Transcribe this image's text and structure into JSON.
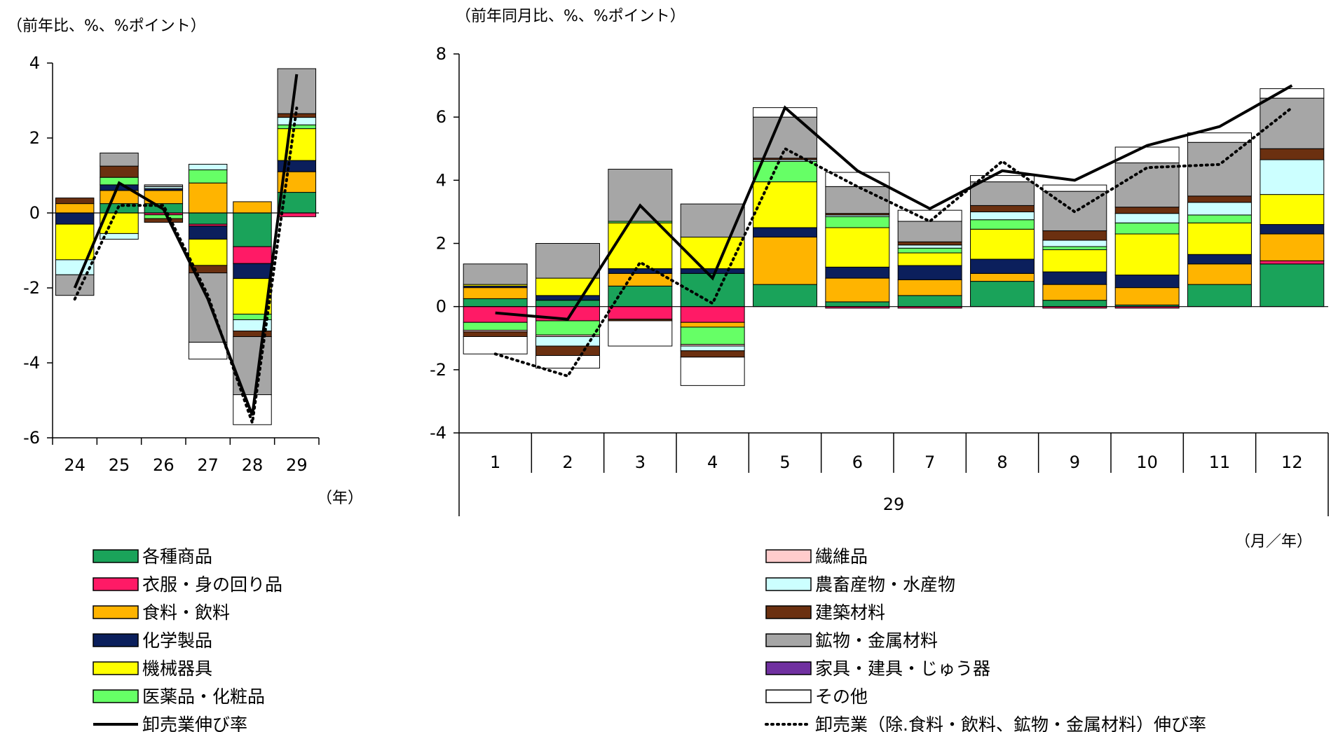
{
  "chart_data": [
    {
      "type": "bar",
      "stacked": true,
      "unit_label": "（前年比、%、%ポイント）",
      "x_unit_label": "（年）",
      "categories": [
        "24",
        "25",
        "26",
        "27",
        "28",
        "29"
      ],
      "ylim": [
        -6,
        4
      ],
      "yticks": [
        "4",
        "2",
        "0",
        "-2",
        "-4",
        "-6"
      ],
      "series": [
        {
          "name": "各種商品",
          "color": "#1aa35a",
          "values": [
            0.0,
            0.25,
            0.25,
            -0.3,
            -0.9,
            0.55
          ]
        },
        {
          "name": "衣服・身の回り品",
          "color": "#ff1a66",
          "values": [
            0.0,
            0.0,
            -0.05,
            -0.05,
            -0.45,
            -0.1
          ]
        },
        {
          "name": "食料・飲料",
          "color": "#ffb400",
          "values": [
            0.25,
            0.35,
            0.35,
            0.8,
            0.3,
            0.55
          ]
        },
        {
          "name": "化学製品",
          "color": "#0b1f5c",
          "values": [
            -0.3,
            0.15,
            0.05,
            -0.35,
            -0.4,
            0.3
          ]
        },
        {
          "name": "機械器具",
          "color": "#ffff00",
          "values": [
            -0.95,
            -0.55,
            0.0,
            -0.7,
            -0.95,
            0.85
          ]
        },
        {
          "name": "医薬品・化粧品",
          "color": "#66ff66",
          "values": [
            0.0,
            0.2,
            -0.1,
            0.35,
            -0.15,
            0.1
          ]
        },
        {
          "name": "繊維品",
          "color": "#ffcccc",
          "values": [
            0.0,
            0.0,
            0.0,
            0.0,
            0.0,
            0.0
          ]
        },
        {
          "name": "農畜産物・水産物",
          "color": "#ccffff",
          "values": [
            -0.4,
            -0.15,
            0.05,
            0.15,
            -0.3,
            0.2
          ]
        },
        {
          "name": "建築材料",
          "color": "#6b3010",
          "values": [
            0.15,
            0.3,
            -0.1,
            -0.2,
            -0.15,
            0.1
          ]
        },
        {
          "name": "鉱物・金属材料",
          "color": "#a6a6a6",
          "values": [
            -0.55,
            0.35,
            0.05,
            -1.85,
            -1.55,
            1.2
          ]
        },
        {
          "name": "家具・建具・じゅう器",
          "color": "#7030a0",
          "values": [
            0.0,
            0.0,
            0.0,
            0.0,
            0.0,
            0.0
          ]
        },
        {
          "name": "その他",
          "color": "#ffffff",
          "values": [
            0.0,
            0.0,
            0.0,
            -0.45,
            -0.8,
            0.0
          ]
        }
      ],
      "lines": [
        {
          "name": "卸売業伸び率",
          "style": "solid",
          "values": [
            -2.0,
            0.8,
            0.1,
            -2.3,
            -5.4,
            3.7
          ]
        },
        {
          "name": "卸売業（除.食料・飲料、鉱物・金属材料）伸び率",
          "style": "dotted",
          "values": [
            -2.3,
            0.2,
            0.2,
            -2.2,
            -5.6,
            2.8
          ]
        }
      ]
    },
    {
      "type": "bar",
      "stacked": true,
      "unit_label": "（前年同月比、%、%ポイント）",
      "x_unit_label": "（月／年）",
      "group_label": "29",
      "categories": [
        "1",
        "2",
        "3",
        "4",
        "5",
        "6",
        "7",
        "8",
        "9",
        "10",
        "11",
        "12"
      ],
      "ylim": [
        -4,
        8
      ],
      "yticks": [
        "8",
        "6",
        "4",
        "2",
        "0",
        "-2",
        "-4"
      ],
      "series": [
        {
          "name": "各種商品",
          "color": "#1aa35a",
          "values": [
            0.25,
            0.2,
            0.65,
            1.05,
            0.7,
            0.15,
            0.35,
            0.8,
            0.2,
            0.05,
            0.7,
            1.35
          ]
        },
        {
          "name": "衣服・身の回り品",
          "color": "#ff1a66",
          "values": [
            -0.5,
            -0.45,
            -0.4,
            -0.5,
            0.0,
            -0.05,
            -0.05,
            0.0,
            -0.05,
            -0.05,
            0.0,
            0.1
          ]
        },
        {
          "name": "食料・飲料",
          "color": "#ffb400",
          "values": [
            0.35,
            0.0,
            0.4,
            -0.15,
            1.5,
            0.75,
            0.5,
            0.25,
            0.5,
            0.55,
            0.65,
            0.85
          ]
        },
        {
          "name": "化学製品",
          "color": "#0b1f5c",
          "values": [
            0.05,
            0.15,
            0.15,
            0.15,
            0.3,
            0.35,
            0.45,
            0.45,
            0.4,
            0.4,
            0.3,
            0.3
          ]
        },
        {
          "name": "機械器具",
          "color": "#ffff00",
          "values": [
            0.05,
            0.55,
            1.45,
            1.0,
            1.45,
            1.25,
            0.4,
            0.95,
            0.7,
            1.3,
            1.0,
            0.95
          ]
        },
        {
          "name": "医薬品・化粧品",
          "color": "#66ff66",
          "values": [
            -0.25,
            -0.45,
            0.05,
            -0.55,
            0.65,
            0.35,
            0.15,
            0.3,
            0.1,
            0.35,
            0.25,
            0.0
          ]
        },
        {
          "name": "繊維品",
          "color": "#ffcccc",
          "values": [
            -0.05,
            -0.05,
            0.0,
            -0.05,
            0.0,
            0.0,
            0.0,
            0.0,
            0.0,
            0.0,
            0.0,
            0.0
          ]
        },
        {
          "name": "農畜産物・水産物",
          "color": "#ccffff",
          "values": [
            0.0,
            -0.3,
            0.0,
            -0.15,
            0.05,
            0.05,
            0.1,
            0.25,
            0.2,
            0.3,
            0.4,
            1.1
          ]
        },
        {
          "name": "建築材料",
          "color": "#6b3010",
          "values": [
            -0.15,
            -0.3,
            -0.05,
            -0.2,
            0.05,
            0.05,
            0.1,
            0.2,
            0.3,
            0.2,
            0.2,
            0.35
          ]
        },
        {
          "name": "鉱物・金属材料",
          "color": "#a6a6a6",
          "values": [
            0.65,
            1.1,
            1.65,
            1.05,
            1.3,
            0.85,
            0.65,
            0.75,
            1.25,
            1.4,
            1.7,
            1.6
          ]
        },
        {
          "name": "家具・建具・じゅう器",
          "color": "#7030a0",
          "values": [
            0.0,
            0.0,
            0.0,
            0.0,
            0.0,
            0.0,
            0.0,
            0.0,
            0.0,
            0.0,
            0.0,
            0.0
          ]
        },
        {
          "name": "その他",
          "color": "#ffffff",
          "values": [
            -0.55,
            -0.4,
            -0.8,
            -0.9,
            0.3,
            0.45,
            0.35,
            0.2,
            0.2,
            0.5,
            0.3,
            0.3
          ]
        }
      ],
      "lines": [
        {
          "name": "卸売業伸び率",
          "style": "solid",
          "values": [
            -0.2,
            -0.4,
            3.2,
            0.9,
            6.3,
            4.3,
            3.1,
            4.3,
            4.0,
            5.1,
            5.7,
            7.0
          ]
        },
        {
          "name": "卸売業（除.食料・飲料、鉱物・金属材料）伸び率",
          "style": "dotted",
          "values": [
            -1.5,
            -2.2,
            1.4,
            0.1,
            5.0,
            3.8,
            2.7,
            4.6,
            3.0,
            4.4,
            4.5,
            6.3
          ]
        }
      ]
    }
  ],
  "legend": [
    {
      "label": "各種商品",
      "color": "#1aa35a",
      "kind": "box"
    },
    {
      "label": "衣服・身の回り品",
      "color": "#ff1a66",
      "kind": "box"
    },
    {
      "label": "食料・飲料",
      "color": "#ffb400",
      "kind": "box"
    },
    {
      "label": "化学製品",
      "color": "#0b1f5c",
      "kind": "box"
    },
    {
      "label": "機械器具",
      "color": "#ffff00",
      "kind": "box"
    },
    {
      "label": "医薬品・化粧品",
      "color": "#66ff66",
      "kind": "box"
    },
    {
      "label": "卸売業伸び率",
      "color": "#000000",
      "kind": "solid-line"
    },
    {
      "label": "繊維品",
      "color": "#ffcccc",
      "kind": "box"
    },
    {
      "label": "農畜産物・水産物",
      "color": "#ccffff",
      "kind": "box"
    },
    {
      "label": "建築材料",
      "color": "#6b3010",
      "kind": "box"
    },
    {
      "label": "鉱物・金属材料",
      "color": "#a6a6a6",
      "kind": "box"
    },
    {
      "label": "家具・建具・じゅう器",
      "color": "#7030a0",
      "kind": "box"
    },
    {
      "label": "その他",
      "color": "#ffffff",
      "kind": "box"
    },
    {
      "label": "卸売業（除.食料・飲料、鉱物・金属材料）伸び率",
      "color": "#000000",
      "kind": "dotted-line"
    }
  ]
}
